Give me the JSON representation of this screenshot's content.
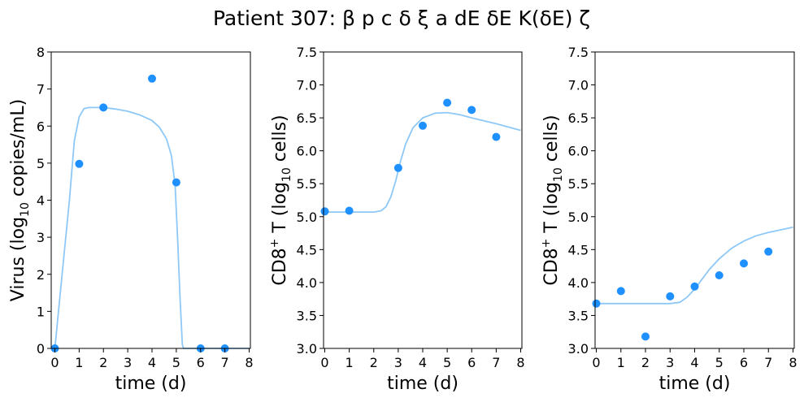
{
  "figure": {
    "title": "Patient 307: β p c δ ξ a dE δE K(δE) ζ"
  },
  "chart_data": [
    {
      "type": "scatter",
      "xlabel": "time (d)",
      "ylabel": {
        "pre": "Virus (log",
        "sub": "10",
        "post": " copies/mL)"
      },
      "xlim": [
        -0.15,
        8.05
      ],
      "ylim": [
        0,
        8
      ],
      "xticks": [
        "0",
        "1",
        "2",
        "3",
        "4",
        "5",
        "6",
        "7",
        "8"
      ],
      "yticks": [
        "0",
        "1",
        "2",
        "3",
        "4",
        "5",
        "6",
        "7",
        "8"
      ],
      "grid": false,
      "points": {
        "x": [
          0,
          1,
          2,
          4,
          5,
          6,
          7
        ],
        "y": [
          0,
          4.98,
          6.5,
          7.28,
          4.48,
          0,
          0
        ]
      },
      "fit": {
        "x": [
          0,
          0.3,
          0.6,
          0.8,
          1.0,
          1.2,
          1.4,
          1.6,
          1.8,
          2.0,
          2.5,
          3.0,
          3.5,
          4.0,
          4.3,
          4.6,
          4.8,
          4.95,
          5.05,
          5.15,
          5.25,
          5.3,
          5.4,
          6,
          7,
          8
        ],
        "y": [
          0,
          2.0,
          4.0,
          5.6,
          6.25,
          6.47,
          6.5,
          6.5,
          6.5,
          6.5,
          6.46,
          6.4,
          6.3,
          6.15,
          5.97,
          5.65,
          5.2,
          4.4,
          3.0,
          1.4,
          0.1,
          0,
          0,
          0,
          0,
          0
        ]
      },
      "colors": {
        "points": "#1e90ff",
        "fit": "#8ec8f7"
      }
    },
    {
      "type": "scatter",
      "xlabel": "time (d)",
      "ylabel": {
        "pre": "CD8",
        "sup": "+",
        "mid": " T (log",
        "sub": "10",
        "post": " cells)"
      },
      "xlim": [
        -0.05,
        8.05
      ],
      "ylim": [
        3.0,
        7.5
      ],
      "xticks": [
        "0",
        "1",
        "2",
        "3",
        "4",
        "5",
        "6",
        "7",
        "8"
      ],
      "yticks": [
        "3.0",
        "3.5",
        "4.0",
        "4.5",
        "5.0",
        "5.5",
        "6.0",
        "6.5",
        "7.0",
        "7.5"
      ],
      "grid": false,
      "points": {
        "x": [
          0,
          1,
          3,
          4,
          5,
          6,
          7
        ],
        "y": [
          5.08,
          5.09,
          5.74,
          6.38,
          6.73,
          6.62,
          6.21
        ]
      },
      "fit": {
        "x": [
          0,
          1,
          2,
          2.3,
          2.5,
          2.7,
          2.9,
          3.1,
          3.3,
          3.6,
          4.0,
          4.5,
          5.0,
          5.5,
          6,
          7,
          8
        ],
        "y": [
          5.07,
          5.07,
          5.07,
          5.09,
          5.15,
          5.3,
          5.55,
          5.85,
          6.1,
          6.35,
          6.5,
          6.57,
          6.58,
          6.55,
          6.5,
          6.41,
          6.31
        ]
      },
      "colors": {
        "points": "#1e90ff",
        "fit": "#8ec8f7"
      }
    },
    {
      "type": "scatter",
      "xlabel": "time (d)",
      "ylabel": {
        "pre": "CD8",
        "sup": "+",
        "mid": " T (log",
        "sub": "10",
        "post": " cells)"
      },
      "xlim": [
        -0.05,
        8.05
      ],
      "ylim": [
        3.0,
        7.5
      ],
      "xticks": [
        "0",
        "1",
        "2",
        "3",
        "4",
        "5",
        "6",
        "7",
        "8"
      ],
      "yticks": [
        "3.0",
        "3.5",
        "4.0",
        "4.5",
        "5.0",
        "5.5",
        "6.0",
        "6.5",
        "7.0",
        "7.5"
      ],
      "grid": false,
      "points": {
        "x": [
          0,
          1,
          2,
          3,
          4,
          5,
          6,
          7
        ],
        "y": [
          3.68,
          3.87,
          3.18,
          3.79,
          3.94,
          4.11,
          4.29,
          4.47
        ]
      },
      "fit": {
        "x": [
          0,
          1,
          2,
          3,
          3.4,
          3.7,
          4.0,
          4.3,
          4.6,
          5.0,
          5.5,
          6,
          6.5,
          7,
          7.5,
          8
        ],
        "y": [
          3.68,
          3.68,
          3.68,
          3.68,
          3.7,
          3.78,
          3.9,
          4.05,
          4.2,
          4.36,
          4.52,
          4.63,
          4.71,
          4.76,
          4.8,
          4.84
        ]
      },
      "colors": {
        "points": "#1e90ff",
        "fit": "#8ec8f7"
      }
    }
  ]
}
